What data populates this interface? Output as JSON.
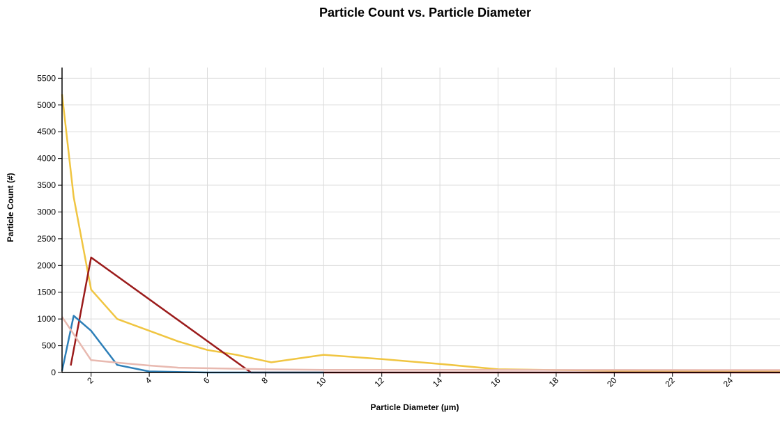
{
  "chart_data": {
    "type": "line",
    "title": "Particle Count vs. Particle Diameter",
    "xlabel": "Particle Diameter (µm)",
    "ylabel": "Particle Count (#)",
    "xlim": [
      1,
      25.7
    ],
    "ylim": [
      0,
      5700
    ],
    "xticks": [
      2,
      4,
      6,
      8,
      10,
      12,
      14,
      16,
      18,
      20,
      22,
      24
    ],
    "yticks": [
      0,
      500,
      1000,
      1500,
      2000,
      2500,
      3000,
      3500,
      4000,
      4500,
      5000,
      5500
    ],
    "grid": true,
    "series": [
      {
        "color": "#f0c541",
        "x": [
          1.0,
          1.4,
          2.0,
          2.9,
          4.0,
          5.0,
          6.0,
          7.0,
          8.2,
          10.0,
          12.0,
          14.0,
          16.0,
          18.0,
          20.0,
          25.7
        ],
        "y": [
          5200,
          3280,
          1550,
          1000,
          780,
          580,
          420,
          330,
          190,
          330,
          250,
          160,
          60,
          45,
          35,
          35
        ]
      },
      {
        "color": "#9b1b1b",
        "x": [
          1.3,
          2.0,
          7.5,
          10.0,
          25.7
        ],
        "y": [
          130,
          2150,
          0,
          0,
          0
        ]
      },
      {
        "color": "#2d7fb8",
        "x": [
          1.0,
          1.4,
          2.0,
          2.9,
          4.0,
          6.0,
          10.0
        ],
        "y": [
          30,
          1060,
          780,
          140,
          20,
          0,
          0
        ]
      },
      {
        "color": "#e8b9b0",
        "x": [
          1.0,
          2.0,
          3.0,
          4.0,
          5.0,
          6.0,
          8.0,
          10.0,
          25.7
        ],
        "y": [
          1040,
          230,
          180,
          130,
          90,
          80,
          60,
          50,
          45
        ]
      }
    ]
  }
}
